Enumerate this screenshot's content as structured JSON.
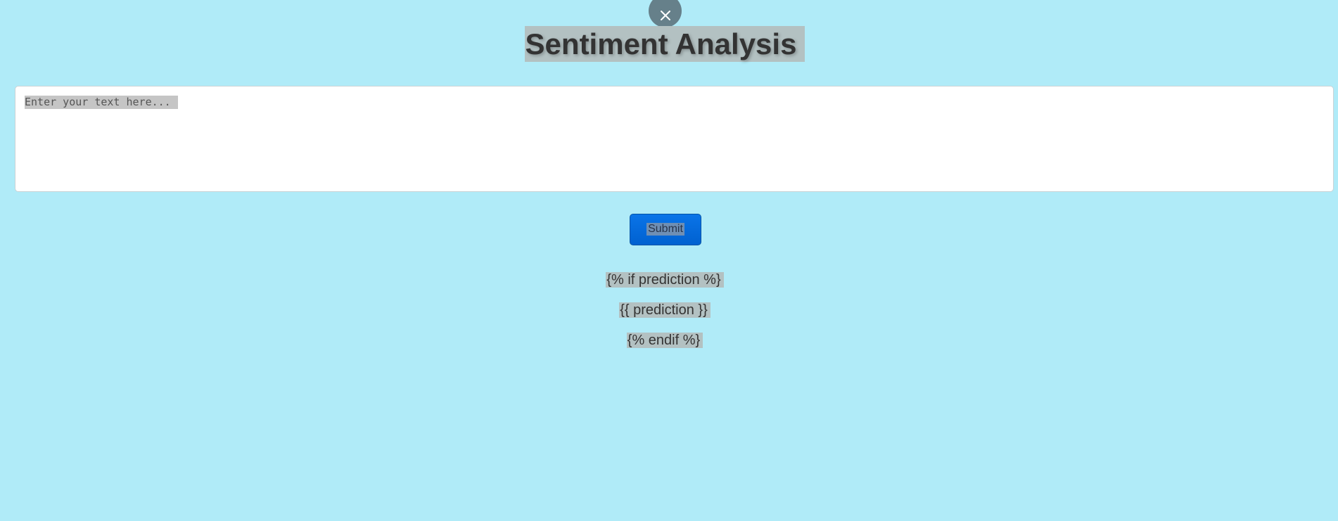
{
  "header": {
    "close_icon": "close-icon",
    "title": "Sentiment Analysis"
  },
  "form": {
    "textarea_placeholder": "Enter your text here...",
    "submit_label": "Submit"
  },
  "result": {
    "line_if": "{% if prediction %}",
    "line_prediction": "{{ prediction }}",
    "line_endif": "{% endif %}"
  },
  "colors": {
    "background": "#b0ebf8",
    "button": "#0061d0",
    "close_button": "#66808a"
  }
}
